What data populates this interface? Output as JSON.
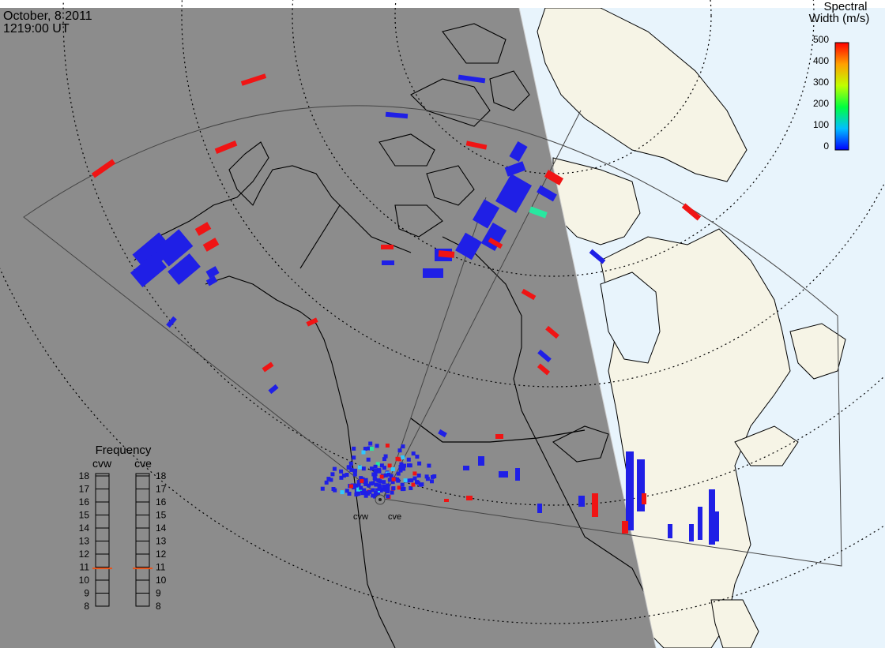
{
  "header": {
    "date": "October, 8 2011",
    "time": "1219:00 UT"
  },
  "colorbar": {
    "title_line1": "Spectral",
    "title_line2": "Width (m/s)",
    "ticks": [
      "500",
      "400",
      "300",
      "200",
      "100",
      "0"
    ],
    "min": 0,
    "max": 500
  },
  "frequency_panel": {
    "title": "Frequency",
    "left_label": "cvw",
    "right_label": "cve",
    "ticks": [
      "18",
      "17",
      "16",
      "15",
      "14",
      "13",
      "12",
      "11",
      "10",
      "9",
      "8"
    ],
    "cvw_value": 10.9,
    "cve_value": 10.9,
    "marker_color": "#e8541c"
  },
  "radars": [
    {
      "label": "cvw"
    },
    {
      "label": "cve"
    }
  ],
  "colors": {
    "night": "#8c8c8c",
    "day_ocean": "#e8f4fc",
    "day_land": "#f6f4e6",
    "blue": "#1f1fe6",
    "red": "#f01414",
    "green": "#28e8a0",
    "cyan": "#30c8ff"
  }
}
